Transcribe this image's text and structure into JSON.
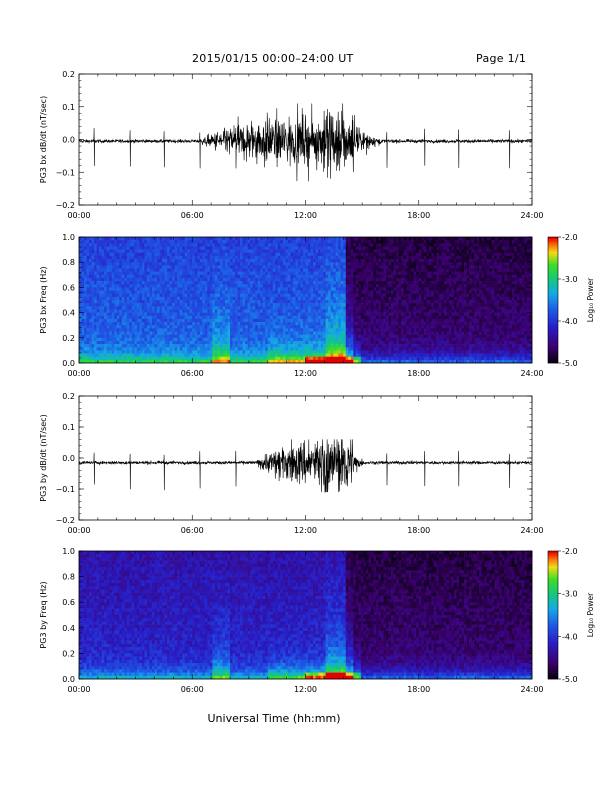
{
  "header": {
    "title": "2015/01/15  00:00–24:00 UT",
    "page": "Page 1/1"
  },
  "x_axis": {
    "ticks": [
      "00:00",
      "06:00",
      "12:00",
      "18:00",
      "24:00"
    ],
    "label": "Universal Time (hh:mm)"
  },
  "colorbar": {
    "ticks": [
      "-2.0",
      "-3.0",
      "-4.0",
      "-5.0"
    ],
    "label": "Log₁₀ Power"
  },
  "chart_data": [
    {
      "type": "line",
      "ylabel": "PG3 bx dB/dt (nT/sec)",
      "ylim": [
        -0.2,
        0.2
      ],
      "yticks": [
        "0.2",
        "0.1",
        "0.0",
        "−0.1",
        "−0.2"
      ],
      "xlim_hours": [
        0,
        24
      ],
      "baseline": -0.005,
      "spikes_hours": [
        0.8,
        2.7,
        4.5,
        6.4,
        8.3,
        16.3,
        18.3,
        20.1,
        22.8
      ],
      "active_interval_hours": [
        7.5,
        15.0
      ],
      "peak_amplitude": 0.11,
      "min_amplitude": -0.13
    },
    {
      "type": "heatmap",
      "ylabel": "PG3 bx Freq (Hz)",
      "ylim": [
        0.0,
        1.0
      ],
      "yticks": [
        "1.0",
        "0.8",
        "0.6",
        "0.4",
        "0.2",
        "0.0"
      ],
      "xlim_hours": [
        0,
        24
      ],
      "color_range": [
        -5.0,
        -2.0
      ]
    },
    {
      "type": "line",
      "ylabel": "PG3 by dB/dt (nT/sec)",
      "ylim": [
        -0.2,
        0.2
      ],
      "yticks": [
        "0.2",
        "0.1",
        "0.0",
        "−0.1",
        "−0.2"
      ],
      "xlim_hours": [
        0,
        24
      ],
      "baseline": -0.015,
      "spikes_hours": [
        0.8,
        2.7,
        4.5,
        6.4,
        8.3,
        16.3,
        18.3,
        20.1,
        22.8
      ],
      "active_interval_hours": [
        10.0,
        14.5
      ],
      "peak_amplitude": 0.06,
      "min_amplitude": -0.11
    },
    {
      "type": "heatmap",
      "ylabel": "PG3 by Freq (Hz)",
      "ylim": [
        0.0,
        1.0
      ],
      "yticks": [
        "1.0",
        "0.8",
        "0.6",
        "0.4",
        "0.2",
        "0.0"
      ],
      "xlim_hours": [
        0,
        24
      ],
      "color_range": [
        -5.0,
        -2.0
      ]
    }
  ]
}
